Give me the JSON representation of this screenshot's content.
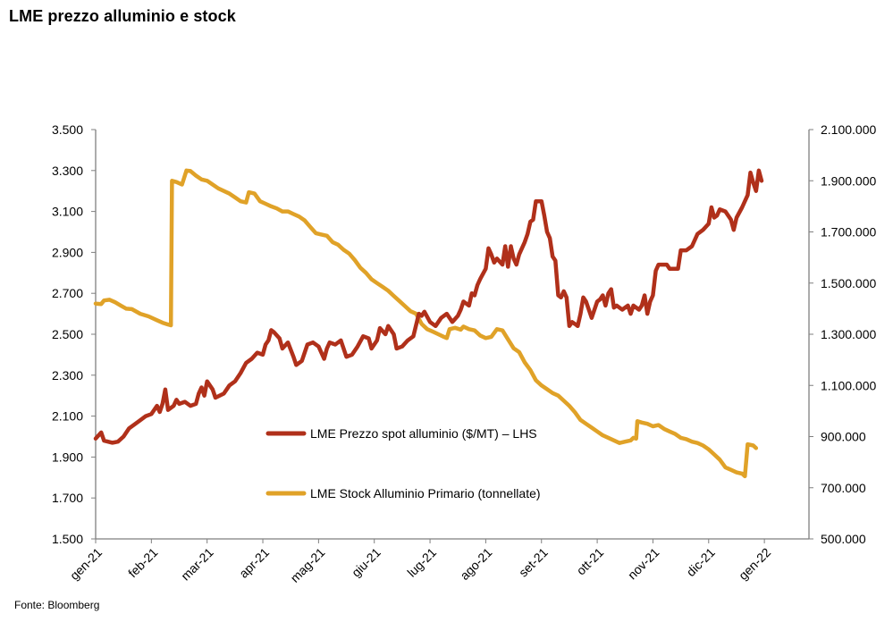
{
  "title": "LME prezzo alluminio e stock",
  "source": "Fonte: Bloomberg",
  "colors": {
    "price": "#b0301a",
    "stock": "#e0a228",
    "axis": "#7f7f7f"
  },
  "chart_data": {
    "type": "line",
    "x_tick_labels": [
      "gen-21",
      "feb-21",
      "mar-21",
      "apr-21",
      "mag-21",
      "giu-21",
      "lug-21",
      "ago-21",
      "set-21",
      "ott-21",
      "nov-21",
      "dic-21",
      "gen-22"
    ],
    "x_range_months": [
      0,
      12.8
    ],
    "y_left": {
      "min": 1500,
      "max": 3500,
      "ticks": [
        "1.500",
        "1.700",
        "1.900",
        "2.100",
        "2.300",
        "2.500",
        "2.700",
        "2.900",
        "3.100",
        "3.300",
        "3.500"
      ],
      "tick_values": [
        1500,
        1700,
        1900,
        2100,
        2300,
        2500,
        2700,
        2900,
        3100,
        3300,
        3500
      ]
    },
    "y_right": {
      "min": 500000,
      "max": 2100000,
      "ticks": [
        "500.000",
        "700.000",
        "900.000",
        "1.100.000",
        "1.300.000",
        "1.500.000",
        "1.700.000",
        "1.900.000",
        "2.100.000"
      ],
      "tick_values": [
        500000,
        700000,
        900000,
        1100000,
        1300000,
        1500000,
        1700000,
        1900000,
        2100000
      ]
    },
    "grid": false,
    "legend_position": "center",
    "series": [
      {
        "name": "LME Prezzo spot alluminio  ($/MT) – LHS",
        "axis": "left",
        "points": [
          [
            0,
            1990
          ],
          [
            0.1,
            2020
          ],
          [
            0.15,
            1980
          ],
          [
            0.3,
            1970
          ],
          [
            0.4,
            1975
          ],
          [
            0.5,
            2000
          ],
          [
            0.6,
            2040
          ],
          [
            0.7,
            2060
          ],
          [
            0.8,
            2080
          ],
          [
            0.9,
            2100
          ],
          [
            1.0,
            2110
          ],
          [
            1.05,
            2130
          ],
          [
            1.1,
            2150
          ],
          [
            1.15,
            2120
          ],
          [
            1.2,
            2160
          ],
          [
            1.25,
            2230
          ],
          [
            1.3,
            2130
          ],
          [
            1.4,
            2150
          ],
          [
            1.45,
            2180
          ],
          [
            1.5,
            2160
          ],
          [
            1.6,
            2170
          ],
          [
            1.7,
            2150
          ],
          [
            1.8,
            2160
          ],
          [
            1.85,
            2210
          ],
          [
            1.9,
            2240
          ],
          [
            1.95,
            2200
          ],
          [
            2.0,
            2270
          ],
          [
            2.1,
            2230
          ],
          [
            2.15,
            2190
          ],
          [
            2.3,
            2210
          ],
          [
            2.4,
            2250
          ],
          [
            2.5,
            2270
          ],
          [
            2.6,
            2310
          ],
          [
            2.7,
            2360
          ],
          [
            2.8,
            2380
          ],
          [
            2.9,
            2410
          ],
          [
            3.0,
            2400
          ],
          [
            3.05,
            2450
          ],
          [
            3.1,
            2470
          ],
          [
            3.15,
            2520
          ],
          [
            3.2,
            2510
          ],
          [
            3.3,
            2480
          ],
          [
            3.35,
            2430
          ],
          [
            3.45,
            2460
          ],
          [
            3.55,
            2390
          ],
          [
            3.6,
            2350
          ],
          [
            3.7,
            2370
          ],
          [
            3.8,
            2450
          ],
          [
            3.9,
            2460
          ],
          [
            4.0,
            2440
          ],
          [
            4.1,
            2380
          ],
          [
            4.15,
            2430
          ],
          [
            4.2,
            2460
          ],
          [
            4.3,
            2450
          ],
          [
            4.4,
            2470
          ],
          [
            4.5,
            2390
          ],
          [
            4.6,
            2400
          ],
          [
            4.7,
            2440
          ],
          [
            4.8,
            2490
          ],
          [
            4.9,
            2480
          ],
          [
            4.95,
            2430
          ],
          [
            5.05,
            2470
          ],
          [
            5.1,
            2530
          ],
          [
            5.2,
            2500
          ],
          [
            5.25,
            2540
          ],
          [
            5.35,
            2500
          ],
          [
            5.4,
            2430
          ],
          [
            5.5,
            2440
          ],
          [
            5.6,
            2470
          ],
          [
            5.7,
            2490
          ],
          [
            5.8,
            2600
          ],
          [
            5.85,
            2590
          ],
          [
            5.9,
            2610
          ],
          [
            6.0,
            2560
          ],
          [
            6.1,
            2540
          ],
          [
            6.2,
            2580
          ],
          [
            6.3,
            2600
          ],
          [
            6.4,
            2560
          ],
          [
            6.5,
            2590
          ],
          [
            6.55,
            2620
          ],
          [
            6.6,
            2660
          ],
          [
            6.7,
            2640
          ],
          [
            6.75,
            2700
          ],
          [
            6.8,
            2690
          ],
          [
            6.85,
            2740
          ],
          [
            6.9,
            2770
          ],
          [
            7.0,
            2820
          ],
          [
            7.05,
            2920
          ],
          [
            7.1,
            2890
          ],
          [
            7.15,
            2850
          ],
          [
            7.2,
            2870
          ],
          [
            7.3,
            2840
          ],
          [
            7.35,
            2930
          ],
          [
            7.4,
            2830
          ],
          [
            7.45,
            2930
          ],
          [
            7.5,
            2870
          ],
          [
            7.55,
            2840
          ],
          [
            7.6,
            2890
          ],
          [
            7.7,
            2950
          ],
          [
            7.75,
            2990
          ],
          [
            7.8,
            3050
          ],
          [
            7.85,
            3060
          ],
          [
            7.9,
            3150
          ],
          [
            8.0,
            3150
          ],
          [
            8.05,
            3080
          ],
          [
            8.1,
            3000
          ],
          [
            8.15,
            2970
          ],
          [
            8.2,
            2880
          ],
          [
            8.25,
            2860
          ],
          [
            8.3,
            2690
          ],
          [
            8.35,
            2680
          ],
          [
            8.4,
            2710
          ],
          [
            8.45,
            2680
          ],
          [
            8.5,
            2540
          ],
          [
            8.55,
            2560
          ],
          [
            8.6,
            2550
          ],
          [
            8.65,
            2540
          ],
          [
            8.7,
            2600
          ],
          [
            8.75,
            2680
          ],
          [
            8.8,
            2660
          ],
          [
            8.9,
            2580
          ],
          [
            9.0,
            2660
          ],
          [
            9.05,
            2670
          ],
          [
            9.1,
            2690
          ],
          [
            9.15,
            2640
          ],
          [
            9.2,
            2700
          ],
          [
            9.25,
            2720
          ],
          [
            9.3,
            2630
          ],
          [
            9.35,
            2640
          ],
          [
            9.45,
            2620
          ],
          [
            9.55,
            2640
          ],
          [
            9.6,
            2600
          ],
          [
            9.65,
            2640
          ],
          [
            9.75,
            2620
          ],
          [
            9.8,
            2640
          ],
          [
            9.85,
            2690
          ],
          [
            9.9,
            2600
          ],
          [
            9.95,
            2660
          ],
          [
            10.0,
            2690
          ],
          [
            10.05,
            2810
          ],
          [
            10.1,
            2840
          ],
          [
            10.25,
            2840
          ],
          [
            10.3,
            2820
          ],
          [
            10.45,
            2820
          ],
          [
            10.5,
            2910
          ],
          [
            10.6,
            2910
          ],
          [
            10.7,
            2930
          ],
          [
            10.8,
            2990
          ],
          [
            10.9,
            3010
          ],
          [
            11.0,
            3040
          ],
          [
            11.05,
            3120
          ],
          [
            11.1,
            3070
          ],
          [
            11.15,
            3080
          ],
          [
            11.2,
            3110
          ],
          [
            11.3,
            3100
          ],
          [
            11.4,
            3060
          ],
          [
            11.45,
            3010
          ],
          [
            11.5,
            3070
          ],
          [
            11.6,
            3120
          ],
          [
            11.7,
            3180
          ],
          [
            11.75,
            3290
          ],
          [
            11.8,
            3240
          ],
          [
            11.85,
            3200
          ],
          [
            11.9,
            3300
          ],
          [
            11.95,
            3250
          ]
        ]
      },
      {
        "name": "LME Stock Alluminio Primario (tonnellate)",
        "axis": "right",
        "points": [
          [
            0,
            1420000
          ],
          [
            0.1,
            1418000
          ],
          [
            0.15,
            1432000
          ],
          [
            0.25,
            1435000
          ],
          [
            0.35,
            1425000
          ],
          [
            0.45,
            1412000
          ],
          [
            0.55,
            1400000
          ],
          [
            0.65,
            1398000
          ],
          [
            0.8,
            1380000
          ],
          [
            0.95,
            1370000
          ],
          [
            1.1,
            1355000
          ],
          [
            1.2,
            1345000
          ],
          [
            1.3,
            1338000
          ],
          [
            1.35,
            1335000
          ],
          [
            1.37,
            1900000
          ],
          [
            1.45,
            1895000
          ],
          [
            1.55,
            1885000
          ],
          [
            1.63,
            1940000
          ],
          [
            1.7,
            1938000
          ],
          [
            1.8,
            1920000
          ],
          [
            1.9,
            1905000
          ],
          [
            2.0,
            1900000
          ],
          [
            2.1,
            1885000
          ],
          [
            2.2,
            1870000
          ],
          [
            2.3,
            1860000
          ],
          [
            2.4,
            1850000
          ],
          [
            2.5,
            1835000
          ],
          [
            2.6,
            1820000
          ],
          [
            2.7,
            1815000
          ],
          [
            2.75,
            1855000
          ],
          [
            2.85,
            1850000
          ],
          [
            2.95,
            1820000
          ],
          [
            3.05,
            1810000
          ],
          [
            3.15,
            1800000
          ],
          [
            3.25,
            1792000
          ],
          [
            3.35,
            1780000
          ],
          [
            3.45,
            1780000
          ],
          [
            3.55,
            1770000
          ],
          [
            3.65,
            1760000
          ],
          [
            3.75,
            1745000
          ],
          [
            3.85,
            1720000
          ],
          [
            3.95,
            1695000
          ],
          [
            4.05,
            1690000
          ],
          [
            4.15,
            1685000
          ],
          [
            4.25,
            1660000
          ],
          [
            4.35,
            1650000
          ],
          [
            4.45,
            1630000
          ],
          [
            4.55,
            1615000
          ],
          [
            4.65,
            1590000
          ],
          [
            4.75,
            1560000
          ],
          [
            4.85,
            1540000
          ],
          [
            4.95,
            1515000
          ],
          [
            5.05,
            1500000
          ],
          [
            5.15,
            1485000
          ],
          [
            5.25,
            1470000
          ],
          [
            5.35,
            1450000
          ],
          [
            5.45,
            1430000
          ],
          [
            5.55,
            1410000
          ],
          [
            5.65,
            1390000
          ],
          [
            5.75,
            1380000
          ],
          [
            5.85,
            1340000
          ],
          [
            5.95,
            1320000
          ],
          [
            6.05,
            1310000
          ],
          [
            6.15,
            1300000
          ],
          [
            6.25,
            1290000
          ],
          [
            6.3,
            1285000
          ],
          [
            6.35,
            1320000
          ],
          [
            6.45,
            1325000
          ],
          [
            6.55,
            1318000
          ],
          [
            6.6,
            1330000
          ],
          [
            6.7,
            1320000
          ],
          [
            6.8,
            1315000
          ],
          [
            6.9,
            1295000
          ],
          [
            7.0,
            1285000
          ],
          [
            7.1,
            1290000
          ],
          [
            7.2,
            1320000
          ],
          [
            7.3,
            1315000
          ],
          [
            7.4,
            1280000
          ],
          [
            7.5,
            1245000
          ],
          [
            7.6,
            1230000
          ],
          [
            7.7,
            1190000
          ],
          [
            7.8,
            1160000
          ],
          [
            7.9,
            1120000
          ],
          [
            8.0,
            1100000
          ],
          [
            8.1,
            1085000
          ],
          [
            8.2,
            1070000
          ],
          [
            8.3,
            1060000
          ],
          [
            8.4,
            1040000
          ],
          [
            8.5,
            1020000
          ],
          [
            8.6,
            995000
          ],
          [
            8.7,
            965000
          ],
          [
            8.8,
            950000
          ],
          [
            8.9,
            935000
          ],
          [
            9.0,
            920000
          ],
          [
            9.1,
            905000
          ],
          [
            9.2,
            895000
          ],
          [
            9.3,
            885000
          ],
          [
            9.4,
            875000
          ],
          [
            9.5,
            880000
          ],
          [
            9.6,
            885000
          ],
          [
            9.65,
            895000
          ],
          [
            9.7,
            892000
          ],
          [
            9.72,
            960000
          ],
          [
            9.8,
            955000
          ],
          [
            9.9,
            950000
          ],
          [
            10.0,
            940000
          ],
          [
            10.1,
            945000
          ],
          [
            10.2,
            930000
          ],
          [
            10.3,
            920000
          ],
          [
            10.4,
            910000
          ],
          [
            10.5,
            895000
          ],
          [
            10.6,
            890000
          ],
          [
            10.7,
            880000
          ],
          [
            10.8,
            875000
          ],
          [
            10.9,
            865000
          ],
          [
            11.0,
            850000
          ],
          [
            11.1,
            830000
          ],
          [
            11.2,
            810000
          ],
          [
            11.3,
            780000
          ],
          [
            11.4,
            770000
          ],
          [
            11.5,
            760000
          ],
          [
            11.6,
            755000
          ],
          [
            11.65,
            745000
          ],
          [
            11.7,
            870000
          ],
          [
            11.8,
            865000
          ],
          [
            11.85,
            855000
          ]
        ]
      }
    ]
  }
}
